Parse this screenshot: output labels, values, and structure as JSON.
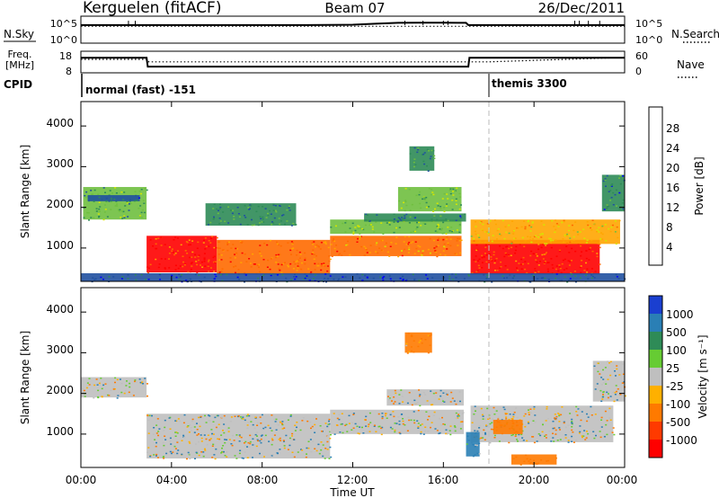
{
  "header": {
    "station": "Kerguelen (fitACF)",
    "beam": "Beam 07",
    "date": "26/Dec/2011"
  },
  "nsky_panel": {
    "label_left": "N.Sky",
    "label_right": "N.Search",
    "left_ticks": [
      "10^5",
      "10^0"
    ],
    "right_ticks": [
      "10^5",
      "10^0"
    ]
  },
  "freq_panel": {
    "label_left_line1": "Freq.",
    "label_left_line2": "[MHz]",
    "label_right": "Nave",
    "left_ticks": [
      "18",
      "8"
    ],
    "right_ticks": [
      "60",
      "0"
    ]
  },
  "cpid_panel": {
    "label": "CPID",
    "modes": [
      "normal (fast) -151",
      "themis 3300"
    ]
  },
  "axes": {
    "ylabel": "Slant Range [km]",
    "xlabel": "Time UT",
    "y_ticks": [
      "1000",
      "2000",
      "3000",
      "4000"
    ],
    "x_ticks": [
      "00:00",
      "04:00",
      "08:00",
      "12:00",
      "16:00",
      "20:00",
      "00:00"
    ]
  },
  "power_colorbar": {
    "title": "Power [dB]",
    "ticks": [
      "4",
      "8",
      "12",
      "16",
      "20",
      "24",
      "28"
    ],
    "colors": [
      "#0000ff",
      "#2050a0",
      "#2e8b57",
      "#6fbf3f",
      "#d4e600",
      "#ffa500",
      "#ff6a00",
      "#ff0000"
    ]
  },
  "velocity_colorbar": {
    "title": "Velocity [m s⁻¹]",
    "ticks": [
      "1000",
      "500",
      "100",
      "25",
      "-25",
      "-100",
      "-500",
      "-1000"
    ],
    "colors": [
      "#1a3fd0",
      "#2a7fb5",
      "#2e8b57",
      "#66cc33",
      "#bfbfbf",
      "#ffb000",
      "#ff7a00",
      "#ff3a00",
      "#ff0000"
    ]
  },
  "chart_data": [
    {
      "type": "line",
      "title": "N.Sky / N.Search",
      "x_range_hours": [
        0,
        24
      ],
      "yscale": "log",
      "ylim": [
        1,
        100000
      ],
      "series": [
        {
          "name": "N.Sky",
          "style": "solid",
          "x": [
            0,
            2,
            4,
            6,
            8,
            10,
            12,
            13,
            14,
            15,
            16,
            17,
            17.1,
            20,
            22,
            24
          ],
          "y": [
            6000,
            6000,
            6000,
            6000,
            6000,
            6000,
            7000,
            12000,
            20000,
            22000,
            22000,
            20000,
            6000,
            6000,
            6000,
            6000
          ]
        },
        {
          "name": "N.Search",
          "style": "dotted",
          "x": [
            0,
            24
          ],
          "y": [
            3000,
            3000
          ]
        }
      ]
    },
    {
      "type": "line",
      "title": "Freq / Nave",
      "x_range_hours": [
        0,
        24
      ],
      "series": [
        {
          "name": "Freq",
          "units": "MHz",
          "style": "solid",
          "x": [
            0,
            2.9,
            2.95,
            17.1,
            17.15,
            24
          ],
          "y": [
            15.5,
            15.5,
            10.8,
            10.8,
            15.5,
            15.5
          ]
        },
        {
          "name": "Nave",
          "style": "dotted",
          "x": [
            0,
            2.9,
            3.0,
            18,
            24
          ],
          "y": [
            40,
            40,
            32,
            32,
            46
          ]
        }
      ]
    },
    {
      "type": "table",
      "title": "CPID",
      "columns": [
        "start_hour",
        "mode"
      ],
      "rows": [
        [
          0,
          "normal (fast) -151"
        ],
        [
          18,
          "themis 3300"
        ]
      ]
    },
    {
      "type": "heatmap",
      "title": "Power [dB]",
      "x_unit": "hours UT",
      "y_unit": "Slant Range [km]",
      "xlim": [
        0,
        24
      ],
      "ylim": [
        180,
        4600
      ],
      "zlim": [
        0,
        32
      ],
      "bands": [
        {
          "x": [
            0.1,
            2.9
          ],
          "y": [
            1700,
            2500
          ],
          "value": 12
        },
        {
          "x": [
            0.3,
            2.6
          ],
          "y": [
            2150,
            2300
          ],
          "value": 6
        },
        {
          "x": [
            2.9,
            6.0
          ],
          "y": [
            400,
            1300
          ],
          "value": 28
        },
        {
          "x": [
            6.0,
            11.0
          ],
          "y": [
            350,
            1200
          ],
          "value": 26
        },
        {
          "x": [
            11.0,
            16.8
          ],
          "y": [
            800,
            1300
          ],
          "value": 24
        },
        {
          "x": [
            11.0,
            16.8
          ],
          "y": [
            1350,
            1700
          ],
          "value": 14
        },
        {
          "x": [
            14.0,
            16.8
          ],
          "y": [
            1900,
            2500
          ],
          "value": 14
        },
        {
          "x": [
            5.5,
            9.5
          ],
          "y": [
            1550,
            2100
          ],
          "value": 10
        },
        {
          "x": [
            14.5,
            15.6
          ],
          "y": [
            2900,
            3500
          ],
          "value": 10
        },
        {
          "x": [
            17.2,
            22.9
          ],
          "y": [
            350,
            1200
          ],
          "value": 28
        },
        {
          "x": [
            17.2,
            23.8
          ],
          "y": [
            1100,
            1700
          ],
          "value": 20
        },
        {
          "x": [
            23.0,
            24.0
          ],
          "y": [
            1900,
            2800
          ],
          "value": 8
        },
        {
          "x": [
            0.0,
            24.0
          ],
          "y": [
            180,
            380
          ],
          "value": 6
        },
        {
          "x": [
            12.5,
            17.0
          ],
          "y": [
            1650,
            1850
          ],
          "value": 8
        }
      ]
    },
    {
      "type": "heatmap",
      "title": "Velocity [m s⁻¹]",
      "x_unit": "hours UT",
      "y_unit": "Slant Range [km]",
      "xlim": [
        0,
        24
      ],
      "ylim": [
        180,
        4600
      ],
      "zlim": [
        -1000,
        1000
      ],
      "bands": [
        {
          "x": [
            0.0,
            2.9
          ],
          "y": [
            1900,
            2400
          ],
          "value": 0
        },
        {
          "x": [
            2.9,
            11.0
          ],
          "y": [
            400,
            1500
          ],
          "value": 0
        },
        {
          "x": [
            11.0,
            16.9
          ],
          "y": [
            1000,
            1600
          ],
          "value": 0
        },
        {
          "x": [
            13.5,
            16.9
          ],
          "y": [
            1700,
            2100
          ],
          "value": 0
        },
        {
          "x": [
            17.2,
            23.5
          ],
          "y": [
            800,
            1700
          ],
          "value": 0
        },
        {
          "x": [
            18.2,
            19.5
          ],
          "y": [
            1000,
            1350
          ],
          "value": -300
        },
        {
          "x": [
            19.0,
            21.0
          ],
          "y": [
            250,
            500
          ],
          "value": -300
        },
        {
          "x": [
            17.0,
            17.6
          ],
          "y": [
            450,
            1050
          ],
          "value": 150
        },
        {
          "x": [
            22.6,
            24.0
          ],
          "y": [
            1800,
            2800
          ],
          "value": 0
        },
        {
          "x": [
            14.3,
            15.5
          ],
          "y": [
            3000,
            3500
          ],
          "value": -200
        }
      ]
    }
  ]
}
